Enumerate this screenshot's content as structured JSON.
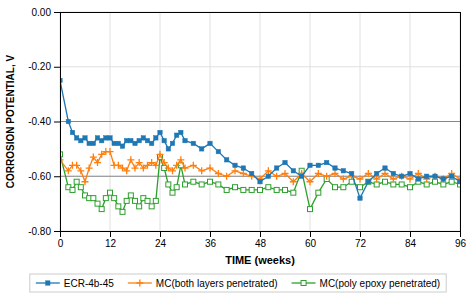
{
  "chart_data": {
    "type": "line",
    "xlabel": "TIME (weeks)",
    "ylabel": "CORROSION POTENTIAL, V",
    "xlim": [
      0,
      96
    ],
    "ylim": [
      -0.8,
      0.0
    ],
    "xticks": [
      0,
      12,
      24,
      36,
      48,
      60,
      72,
      84,
      96
    ],
    "yticks": [
      {
        "value": 0.0,
        "label": "0.00"
      },
      {
        "value": -0.2,
        "label": "-0.20"
      },
      {
        "value": -0.4,
        "label": "-0.40"
      },
      {
        "value": -0.6,
        "label": "-0.60"
      },
      {
        "value": -0.8,
        "label": "-0.80"
      }
    ],
    "grid": true,
    "legend": "bottom",
    "hlines": [
      -0.4,
      -0.6
    ],
    "series": [
      {
        "name": "ECR-4b-45",
        "marker": "square",
        "x": [
          0,
          2,
          3,
          4,
          5,
          6,
          7,
          8,
          9,
          10,
          11,
          12,
          13,
          14,
          15,
          16,
          17,
          18,
          19,
          20,
          21,
          22,
          23,
          24,
          25,
          26,
          27,
          28,
          29,
          30,
          32,
          34,
          36,
          38,
          40,
          42,
          44,
          46,
          48,
          50,
          52,
          54,
          56,
          58,
          60,
          62,
          64,
          66,
          68,
          70,
          72,
          74,
          76,
          78,
          80,
          82,
          84,
          86,
          88,
          90,
          92,
          94,
          96
        ],
        "values": [
          -0.25,
          -0.4,
          -0.44,
          -0.46,
          -0.47,
          -0.46,
          -0.48,
          -0.48,
          -0.46,
          -0.47,
          -0.46,
          -0.46,
          -0.48,
          -0.48,
          -0.49,
          -0.47,
          -0.47,
          -0.48,
          -0.47,
          -0.46,
          -0.47,
          -0.48,
          -0.46,
          -0.44,
          -0.47,
          -0.5,
          -0.48,
          -0.45,
          -0.44,
          -0.47,
          -0.48,
          -0.5,
          -0.48,
          -0.51,
          -0.54,
          -0.56,
          -0.57,
          -0.59,
          -0.62,
          -0.6,
          -0.57,
          -0.55,
          -0.58,
          -0.6,
          -0.56,
          -0.56,
          -0.55,
          -0.57,
          -0.58,
          -0.59,
          -0.68,
          -0.62,
          -0.59,
          -0.57,
          -0.59,
          -0.6,
          -0.59,
          -0.61,
          -0.6,
          -0.6,
          -0.61,
          -0.6,
          -0.62
        ]
      },
      {
        "name": "MC(both layers penetrated)",
        "marker": "plus",
        "x": [
          0,
          2,
          3,
          4,
          5,
          6,
          7,
          8,
          9,
          10,
          11,
          12,
          13,
          14,
          15,
          16,
          17,
          18,
          19,
          20,
          21,
          22,
          23,
          24,
          25,
          26,
          27,
          28,
          29,
          30,
          32,
          34,
          36,
          38,
          40,
          42,
          44,
          46,
          48,
          50,
          52,
          54,
          56,
          58,
          60,
          62,
          64,
          66,
          68,
          70,
          72,
          74,
          76,
          78,
          80,
          82,
          84,
          86,
          88,
          90,
          92,
          94,
          96
        ],
        "values": [
          -0.54,
          -0.58,
          -0.56,
          -0.56,
          -0.58,
          -0.62,
          -0.57,
          -0.53,
          -0.55,
          -0.52,
          -0.51,
          -0.51,
          -0.56,
          -0.56,
          -0.57,
          -0.58,
          -0.54,
          -0.57,
          -0.55,
          -0.57,
          -0.56,
          -0.55,
          -0.56,
          -0.52,
          -0.55,
          -0.57,
          -0.58,
          -0.56,
          -0.54,
          -0.57,
          -0.56,
          -0.58,
          -0.57,
          -0.59,
          -0.6,
          -0.58,
          -0.59,
          -0.6,
          -0.61,
          -0.58,
          -0.6,
          -0.59,
          -0.62,
          -0.59,
          -0.62,
          -0.59,
          -0.6,
          -0.59,
          -0.61,
          -0.6,
          -0.61,
          -0.59,
          -0.61,
          -0.59,
          -0.61,
          -0.6,
          -0.61,
          -0.59,
          -0.61,
          -0.6,
          -0.61,
          -0.59,
          -0.61
        ]
      },
      {
        "name": "MC(poly epoxy penetrated)",
        "marker": "open-square",
        "x": [
          0,
          2,
          3,
          4,
          5,
          6,
          7,
          8,
          9,
          10,
          11,
          12,
          13,
          14,
          15,
          16,
          17,
          18,
          19,
          20,
          21,
          22,
          23,
          24,
          25,
          26,
          27,
          28,
          29,
          30,
          32,
          34,
          36,
          38,
          40,
          42,
          44,
          46,
          48,
          50,
          52,
          54,
          56,
          58,
          60,
          62,
          64,
          66,
          68,
          70,
          72,
          74,
          76,
          78,
          80,
          82,
          84,
          86,
          88,
          90,
          92,
          94,
          96
        ],
        "values": [
          -0.52,
          -0.64,
          -0.65,
          -0.62,
          -0.64,
          -0.67,
          -0.68,
          -0.68,
          -0.7,
          -0.72,
          -0.68,
          -0.66,
          -0.68,
          -0.71,
          -0.73,
          -0.69,
          -0.67,
          -0.69,
          -0.71,
          -0.68,
          -0.69,
          -0.71,
          -0.69,
          -0.53,
          -0.57,
          -0.63,
          -0.66,
          -0.64,
          -0.56,
          -0.63,
          -0.62,
          -0.63,
          -0.62,
          -0.63,
          -0.65,
          -0.64,
          -0.65,
          -0.65,
          -0.65,
          -0.64,
          -0.65,
          -0.65,
          -0.66,
          -0.58,
          -0.72,
          -0.66,
          -0.61,
          -0.64,
          -0.64,
          -0.62,
          -0.64,
          -0.62,
          -0.63,
          -0.62,
          -0.63,
          -0.63,
          -0.64,
          -0.62,
          -0.63,
          -0.62,
          -0.63,
          -0.62,
          -0.63
        ]
      }
    ]
  }
}
